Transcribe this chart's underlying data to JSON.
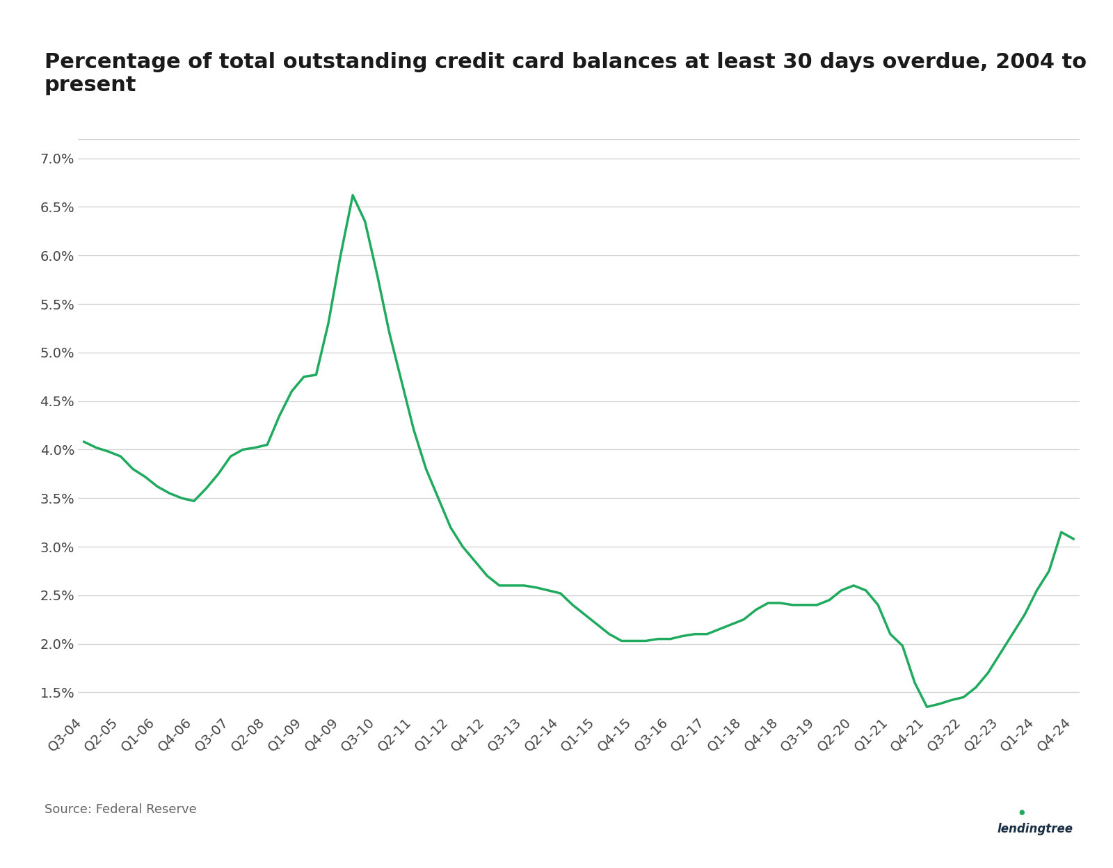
{
  "title": "Percentage of total outstanding credit card balances at least 30 days overdue, 2004 to present",
  "source": "Source: Federal Reserve",
  "line_color": "#1faa5e",
  "background_color": "#ffffff",
  "grid_color": "#d0d0d0",
  "ylim": [
    1.3,
    7.2
  ],
  "yticks": [
    1.5,
    2.0,
    2.5,
    3.0,
    3.5,
    4.0,
    4.5,
    5.0,
    5.5,
    6.0,
    6.5,
    7.0
  ],
  "xtick_labels": [
    "Q3-04",
    "Q2-05",
    "Q1-06",
    "Q4-06",
    "Q3-07",
    "Q2-08",
    "Q1-09",
    "Q4-09",
    "Q3-10",
    "Q2-11",
    "Q1-12",
    "Q4-12",
    "Q3-13",
    "Q2-14",
    "Q1-15",
    "Q4-15",
    "Q3-16",
    "Q2-17",
    "Q1-18",
    "Q4-18",
    "Q3-19",
    "Q2-20",
    "Q1-21",
    "Q4-21",
    "Q3-22",
    "Q2-23",
    "Q1-24",
    "Q4-24"
  ],
  "quarters": [
    "Q3-04",
    "Q4-04",
    "Q1-05",
    "Q2-05",
    "Q3-05",
    "Q4-05",
    "Q1-06",
    "Q2-06",
    "Q3-06",
    "Q4-06",
    "Q1-07",
    "Q2-07",
    "Q3-07",
    "Q4-07",
    "Q1-08",
    "Q2-08",
    "Q3-08",
    "Q4-08",
    "Q1-09",
    "Q2-09",
    "Q3-09",
    "Q4-09",
    "Q1-10",
    "Q2-10",
    "Q3-10",
    "Q4-10",
    "Q1-11",
    "Q2-11",
    "Q3-11",
    "Q4-11",
    "Q1-12",
    "Q2-12",
    "Q3-12",
    "Q4-12",
    "Q1-13",
    "Q2-13",
    "Q3-13",
    "Q4-13",
    "Q1-14",
    "Q2-14",
    "Q3-14",
    "Q4-14",
    "Q1-15",
    "Q2-15",
    "Q3-15",
    "Q4-15",
    "Q1-16",
    "Q2-16",
    "Q3-16",
    "Q4-16",
    "Q1-17",
    "Q2-17",
    "Q3-17",
    "Q4-17",
    "Q1-18",
    "Q2-18",
    "Q3-18",
    "Q4-18",
    "Q1-19",
    "Q2-19",
    "Q3-19",
    "Q4-19",
    "Q1-20",
    "Q2-20",
    "Q3-20",
    "Q4-20",
    "Q1-21",
    "Q2-21",
    "Q3-21",
    "Q4-21",
    "Q1-22",
    "Q2-22",
    "Q3-22",
    "Q4-22",
    "Q1-23",
    "Q2-23",
    "Q3-23",
    "Q4-23",
    "Q1-24",
    "Q2-24",
    "Q3-24",
    "Q4-24"
  ],
  "values": [
    4.08,
    4.02,
    3.98,
    3.93,
    3.8,
    3.72,
    3.62,
    3.55,
    3.5,
    3.47,
    3.6,
    3.75,
    3.93,
    4.0,
    4.02,
    4.05,
    4.35,
    4.6,
    4.75,
    4.77,
    5.3,
    6.0,
    6.62,
    6.35,
    5.8,
    5.2,
    4.7,
    4.2,
    3.8,
    3.5,
    3.2,
    3.0,
    2.85,
    2.7,
    2.6,
    2.6,
    2.6,
    2.58,
    2.55,
    2.52,
    2.4,
    2.3,
    2.2,
    2.1,
    2.03,
    2.03,
    2.03,
    2.05,
    2.05,
    2.08,
    2.1,
    2.1,
    2.15,
    2.2,
    2.25,
    2.35,
    2.42,
    2.42,
    2.4,
    2.4,
    2.4,
    2.45,
    2.55,
    2.6,
    2.55,
    2.4,
    2.1,
    1.98,
    1.6,
    1.35,
    1.38,
    1.42,
    1.45,
    1.55,
    1.7,
    1.9,
    2.1,
    2.3,
    2.55,
    2.75,
    3.15,
    3.08
  ],
  "title_fontsize": 22,
  "tick_fontsize": 14,
  "source_fontsize": 13,
  "logo_text": "lendingtree",
  "logo_color": "#1a2e44",
  "logo_leaf_color": "#1faa5e"
}
